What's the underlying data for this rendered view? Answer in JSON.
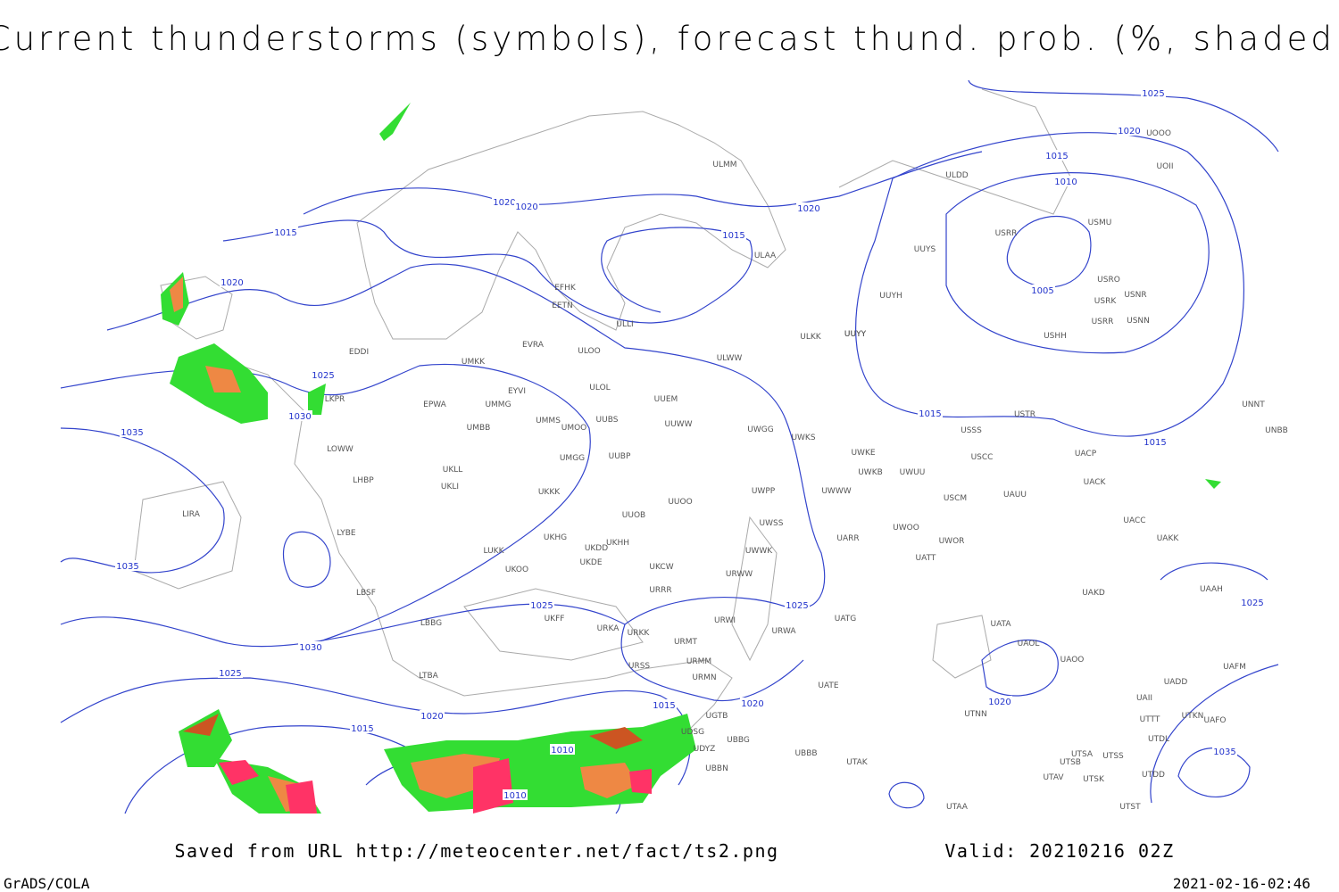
{
  "header": {
    "title": "Current thunderstorms (symbols), forecast thund. prob. (%, shaded)"
  },
  "isobar_labels": [
    1025,
    1020,
    1015,
    1010,
    1005,
    1015,
    1015,
    1020,
    1020,
    1015,
    1020,
    1015,
    1020,
    1025,
    1030,
    1035,
    1035,
    1030,
    1025,
    1025,
    1025,
    1020,
    1015,
    1015,
    1020,
    1010,
    1010,
    1020,
    1025,
    1035
  ],
  "stations": [
    "ULMM",
    "ULDD",
    "ULAA",
    "EFHK",
    "EETN",
    "ULLI",
    "EVRA",
    "ULOO",
    "UMKK",
    "EDDI",
    "ULOL",
    "EYVI",
    "UUEM",
    "EPWA",
    "UMMG",
    "LKPR",
    "UMMS",
    "UMOO",
    "UUBS",
    "UUWW",
    "UMBB",
    "UWGG",
    "UWKS",
    "UWKE",
    "LOWW",
    "UMGG",
    "UUBP",
    "UKLL",
    "UKLI",
    "LHBP",
    "UKKK",
    "UUOO",
    "UWPP",
    "UWWW",
    "UWKB",
    "UWUU",
    "USCM",
    "UAUU",
    "UUOB",
    "LIRA",
    "LYBE",
    "UKHG",
    "UKDD",
    "UKHH",
    "UWSS",
    "UARR",
    "UWOO",
    "UWOR",
    "UATT",
    "LUKK",
    "UKOO",
    "UKDE",
    "UKCW",
    "URWW",
    "UWWK",
    "LBSF",
    "URRR",
    "LBBG",
    "UKFF",
    "URKA",
    "URKK",
    "URWI",
    "URMT",
    "URWA",
    "UATG",
    "URMM",
    "URSS",
    "URMN",
    "UATE",
    "LTBA",
    "UGTB",
    "UDSG",
    "UBBG",
    "UDYZ",
    "UBBN",
    "UBBB",
    "UTAK",
    "UTAA",
    "UTNN",
    "UATA",
    "UAOL",
    "UAOO",
    "UAKD",
    "UACC",
    "UAKK",
    "UACK",
    "UACP",
    "USSS",
    "USCC",
    "USTR",
    "UUYH",
    "UUYY",
    "UUYS",
    "USRR",
    "USMU",
    "USRO",
    "USRK",
    "USNR",
    "USNN",
    "USRR",
    "USHH",
    "UNNT",
    "UNBB",
    "UAAH",
    "UAFM",
    "UADD",
    "UAII",
    "UTTT",
    "UTKN",
    "UAFO",
    "UTDL",
    "UTSA",
    "UTSB",
    "UTSS",
    "UTAV",
    "UTSK",
    "UTDD",
    "UTST",
    "UOOO",
    "UOII",
    "ULWW",
    "ULKK",
    "UUYY"
  ],
  "footer": {
    "source": "Saved from URL http://meteocenter.net/fact/ts2.png",
    "valid": "Valid: 20210216 02Z",
    "software": "GrADS/COLA",
    "timestamp": "2021-02-16-02:46"
  }
}
